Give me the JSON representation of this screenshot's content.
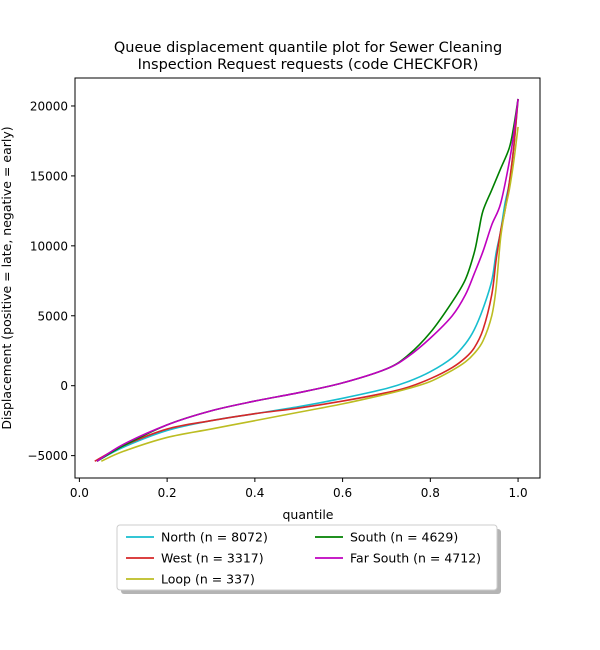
{
  "chart_data": {
    "type": "line",
    "title_lines": [
      "Queue displacement quantile plot for Sewer Cleaning",
      "Inspection Request  requests (code CHECKFOR)"
    ],
    "xlabel": "quantile",
    "ylabel": "Displacement (positive = late, negative = early)",
    "xlim": [
      -0.01,
      1.05
    ],
    "ylim": [
      -6600,
      22000
    ],
    "xticks": [
      0.0,
      0.2,
      0.4,
      0.6,
      0.8,
      1.0
    ],
    "xtick_labels": [
      "0.0",
      "0.2",
      "0.4",
      "0.6",
      "0.8",
      "1.0"
    ],
    "yticks": [
      -5000,
      0,
      5000,
      10000,
      15000,
      20000
    ],
    "ytick_labels": [
      "−5000",
      "0",
      "5000",
      "10000",
      "15000",
      "20000"
    ],
    "grid": false,
    "legend_placement": "below-center",
    "series": [
      {
        "name": "North (n = 8072)",
        "color": "#17becf",
        "x": [
          0.04,
          0.1,
          0.2,
          0.3,
          0.4,
          0.5,
          0.6,
          0.7,
          0.75,
          0.8,
          0.85,
          0.88,
          0.9,
          0.92,
          0.94,
          0.95,
          0.96,
          0.97,
          0.98,
          0.99,
          1.0
        ],
        "y": [
          -5400,
          -4400,
          -3200,
          -2500,
          -2000,
          -1500,
          -900,
          -200,
          300,
          1000,
          2000,
          3000,
          4000,
          5500,
          7500,
          9500,
          11000,
          13000,
          14500,
          17000,
          20500
        ]
      },
      {
        "name": "West (n = 3317)",
        "color": "#d62728",
        "x": [
          0.035,
          0.1,
          0.2,
          0.3,
          0.4,
          0.5,
          0.6,
          0.7,
          0.75,
          0.8,
          0.85,
          0.88,
          0.9,
          0.92,
          0.94,
          0.95,
          0.96,
          0.97,
          0.98,
          0.99,
          1.0
        ],
        "y": [
          -5400,
          -4300,
          -3100,
          -2500,
          -2000,
          -1600,
          -1100,
          -500,
          -100,
          500,
          1300,
          2000,
          2700,
          4000,
          6500,
          9000,
          11000,
          12500,
          14500,
          17000,
          20500
        ]
      },
      {
        "name": "Loop (n = 337)",
        "color": "#bcbd22",
        "x": [
          0.05,
          0.1,
          0.2,
          0.3,
          0.4,
          0.5,
          0.6,
          0.7,
          0.75,
          0.8,
          0.85,
          0.88,
          0.9,
          0.92,
          0.94,
          0.95,
          0.96,
          0.97,
          0.98,
          0.99,
          1.0
        ],
        "y": [
          -5400,
          -4700,
          -3700,
          -3100,
          -2500,
          -1900,
          -1300,
          -600,
          -200,
          300,
          1100,
          1700,
          2300,
          3200,
          5000,
          7000,
          10500,
          12500,
          14000,
          16000,
          18500
        ]
      },
      {
        "name": "South (n = 4629)",
        "color": "#008000",
        "x": [
          0.04,
          0.1,
          0.2,
          0.3,
          0.4,
          0.5,
          0.6,
          0.7,
          0.75,
          0.8,
          0.85,
          0.88,
          0.9,
          0.91,
          0.92,
          0.94,
          0.96,
          0.98,
          0.99,
          1.0
        ],
        "y": [
          -5400,
          -4300,
          -2800,
          -1800,
          -1100,
          -500,
          200,
          1200,
          2200,
          3800,
          6000,
          7600,
          9500,
          11000,
          12500,
          14000,
          15500,
          17000,
          18500,
          20500
        ]
      },
      {
        "name": "Far South (n = 4712)",
        "color": "#bf00bf",
        "x": [
          0.04,
          0.1,
          0.2,
          0.3,
          0.4,
          0.5,
          0.6,
          0.7,
          0.75,
          0.8,
          0.85,
          0.88,
          0.9,
          0.92,
          0.94,
          0.96,
          0.98,
          0.99,
          1.0
        ],
        "y": [
          -5400,
          -4200,
          -2800,
          -1800,
          -1100,
          -500,
          200,
          1200,
          2100,
          3400,
          5000,
          6500,
          8000,
          9600,
          11500,
          13000,
          16000,
          18000,
          20500
        ]
      }
    ],
    "legend_columns": [
      [
        "North (n = 8072)",
        "West (n = 3317)",
        "Loop (n = 337)"
      ],
      [
        "South (n = 4629)",
        "Far South (n = 4712)"
      ]
    ]
  }
}
